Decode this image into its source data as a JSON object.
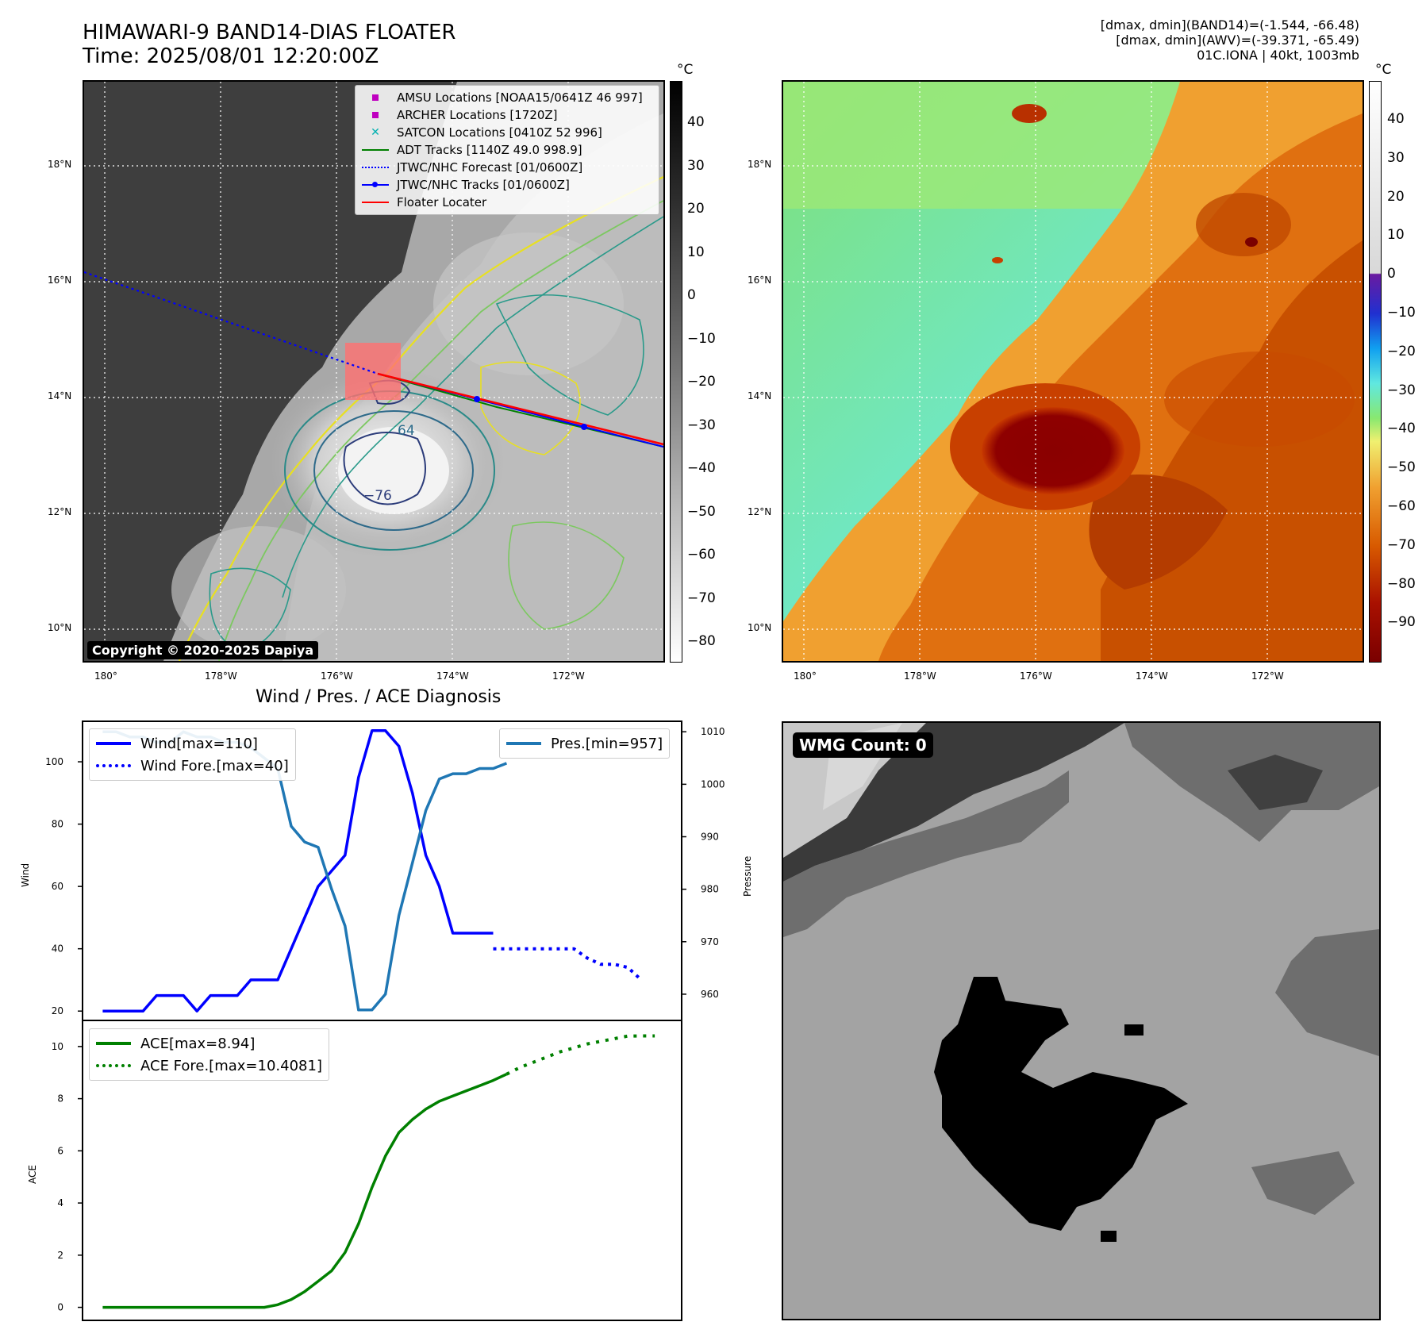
{
  "header": {
    "title_line1": "HIMAWARI-9 BAND14-DIAS FLOATER",
    "title_line2": "Time: 2025/08/01 12:20:00Z",
    "info_line1": "[dmax, dmin](BAND14)=(-1.544, -66.48)",
    "info_line2": "[dmax, dmin](AWV)=(-39.371, -65.49)",
    "info_line3": "01C.IONA | 40kt, 1003mb"
  },
  "map_left": {
    "legend": [
      {
        "label": "AMSU Locations [NOAA15/0641Z 46 997]",
        "color": "#c000c0",
        "marker": "square"
      },
      {
        "label": "ARCHER Locations [1720Z]",
        "color": "#c000c0",
        "marker": "square"
      },
      {
        "label": "SATCON Locations [0410Z 52 996]",
        "color": "#00b0b0",
        "marker": "x"
      },
      {
        "label": "ADT Tracks [1140Z 49.0 998.9]",
        "color": "#008000",
        "marker": "line"
      },
      {
        "label": "JTWC/NHC Forecast [01/0600Z]",
        "color": "#0000ff",
        "marker": "dotted"
      },
      {
        "label": "JTWC/NHC Tracks [01/0600Z]",
        "color": "#0000ff",
        "marker": "dotline"
      },
      {
        "label": "Floater Locater",
        "color": "#ff0000",
        "marker": "line"
      }
    ],
    "contour_labels": [
      "64",
      "−76"
    ],
    "copyright": "Copyright © 2020-2025 Dapiya",
    "colorbar_unit": "°C",
    "colorbar_ticks": [
      "40",
      "30",
      "20",
      "10",
      "0",
      "−10",
      "−20",
      "−30",
      "−40",
      "−50",
      "−60",
      "−70",
      "−80"
    ]
  },
  "map_right": {
    "colorbar_unit": "°C",
    "colorbar_ticks": [
      "40",
      "30",
      "20",
      "10",
      "0",
      "−10",
      "−20",
      "−30",
      "−40",
      "−50",
      "−60",
      "−70",
      "−80",
      "−90"
    ]
  },
  "map_axes": {
    "lat_labels": [
      "18°N",
      "16°N",
      "14°N",
      "12°N",
      "10°N"
    ],
    "lon_labels": [
      "180°",
      "178°W",
      "176°W",
      "174°W",
      "172°W"
    ]
  },
  "wmg": {
    "label": "WMG Count: 0"
  },
  "chart_data": [
    {
      "type": "line",
      "title": "Wind / Pres. / ACE Diagnosis",
      "ylabel": "Wind",
      "y2label": "Pressure",
      "ylim": [
        17,
        113
      ],
      "y2lim": [
        955,
        1012
      ],
      "yticks": [
        20,
        40,
        60,
        80,
        100
      ],
      "y2ticks": [
        960,
        970,
        980,
        990,
        1000,
        1010
      ],
      "series": [
        {
          "name": "Wind[max=110]",
          "color": "#0000ff",
          "style": "solid",
          "axis": "left",
          "x": [
            0,
            1,
            2,
            3,
            4,
            5,
            6,
            7,
            8,
            9,
            10,
            11,
            12,
            13,
            14,
            15,
            16,
            17,
            18,
            19,
            20,
            21,
            22,
            23,
            24,
            25,
            26,
            27,
            28,
            29
          ],
          "values": [
            20,
            20,
            20,
            20,
            25,
            25,
            25,
            20,
            25,
            25,
            25,
            30,
            30,
            30,
            40,
            50,
            60,
            65,
            70,
            95,
            110,
            110,
            105,
            90,
            70,
            60,
            45,
            45,
            45,
            45
          ]
        },
        {
          "name": "Wind Fore.[max=40]",
          "color": "#0000ff",
          "style": "dotted",
          "axis": "left",
          "x": [
            29,
            30,
            31,
            32,
            33,
            34,
            35,
            36,
            37,
            38,
            39,
            40
          ],
          "values": [
            40,
            40,
            40,
            40,
            40,
            40,
            40,
            37,
            35,
            35,
            34,
            30
          ]
        },
        {
          "name": "Pres.[min=957]",
          "color": "#1f77b4",
          "style": "solid",
          "axis": "right",
          "x": [
            0,
            1,
            2,
            3,
            4,
            5,
            6,
            7,
            8,
            9,
            10,
            11,
            12,
            13,
            14,
            15,
            16,
            17,
            18,
            19,
            20,
            21,
            22,
            23,
            24,
            25,
            26,
            27,
            28,
            29,
            30
          ],
          "values": [
            1010,
            1010,
            1009,
            1009,
            1008,
            1008,
            1010,
            1009,
            1009,
            1008,
            1008,
            1007,
            1005,
            1003,
            992,
            989,
            988,
            980,
            973,
            957,
            957,
            960,
            975,
            985,
            995,
            1001,
            1002,
            1002,
            1003,
            1003,
            1004
          ]
        }
      ]
    },
    {
      "type": "line",
      "ylabel": "ACE",
      "ylim": [
        -0.5,
        11.0
      ],
      "yticks": [
        0,
        2,
        4,
        6,
        8,
        10
      ],
      "series": [
        {
          "name": "ACE[max=8.94]",
          "color": "#008000",
          "style": "solid",
          "x": [
            0,
            1,
            2,
            3,
            4,
            5,
            6,
            7,
            8,
            9,
            10,
            11,
            12,
            13,
            14,
            15,
            16,
            17,
            18,
            19,
            20,
            21,
            22,
            23,
            24,
            25,
            26,
            27,
            28,
            29,
            30
          ],
          "values": [
            0,
            0,
            0,
            0,
            0,
            0,
            0,
            0,
            0,
            0,
            0,
            0,
            0,
            0.1,
            0.3,
            0.6,
            1.0,
            1.4,
            2.1,
            3.2,
            4.6,
            5.8,
            6.7,
            7.2,
            7.6,
            7.9,
            8.1,
            8.3,
            8.5,
            8.7,
            8.94
          ]
        },
        {
          "name": "ACE Fore.[max=10.4081]",
          "color": "#008000",
          "style": "dotted",
          "x": [
            30,
            31,
            32,
            33,
            34,
            35,
            36,
            37,
            38,
            39,
            40,
            41
          ],
          "values": [
            8.94,
            9.2,
            9.4,
            9.6,
            9.8,
            9.95,
            10.1,
            10.2,
            10.3,
            10.4,
            10.4081,
            10.4081
          ]
        }
      ]
    }
  ]
}
